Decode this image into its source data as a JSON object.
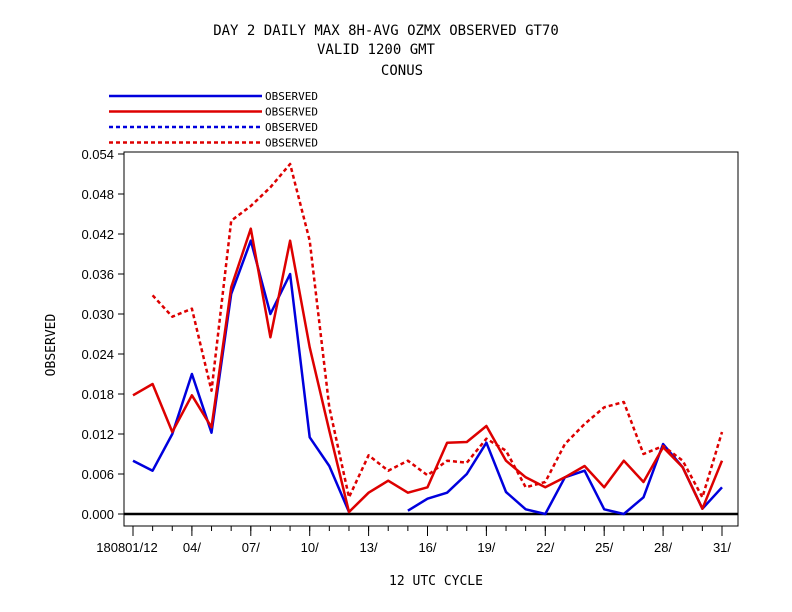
{
  "chart_data": {
    "type": "line",
    "title": [
      "DAY 2 DAILY MAX   8H-AVG OZMX OBSERVED GT70",
      "VALID 1200 GMT",
      "CONUS"
    ],
    "xlabel": "12 UTC CYCLE",
    "ylabel": "OBSERVED",
    "ylim": [
      0,
      0.054
    ],
    "yticks": [
      "0.000",
      "0.006",
      "0.012",
      "0.018",
      "0.024",
      "0.030",
      "0.036",
      "0.042",
      "0.048",
      "0.054"
    ],
    "x_first_tick_label": "180801/12",
    "xticks": [
      {
        "day": 1,
        "label": "180801/12"
      },
      {
        "day": 4,
        "label": "04/"
      },
      {
        "day": 7,
        "label": "07/"
      },
      {
        "day": 10,
        "label": "10/"
      },
      {
        "day": 13,
        "label": "13/"
      },
      {
        "day": 16,
        "label": "16/"
      },
      {
        "day": 19,
        "label": "19/"
      },
      {
        "day": 22,
        "label": "22/"
      },
      {
        "day": 25,
        "label": "25/"
      },
      {
        "day": 28,
        "label": "28/"
      },
      {
        "day": 31,
        "label": "31/"
      }
    ],
    "x": [
      1,
      2,
      3,
      4,
      5,
      6,
      7,
      8,
      9,
      10,
      11,
      12,
      13,
      14,
      15,
      16,
      17,
      18,
      19,
      20,
      21,
      22,
      23,
      24,
      25,
      26,
      27,
      28,
      29,
      30,
      31
    ],
    "legend_placement": "top-left",
    "series": [
      {
        "name": "OBSERVED",
        "color": "#0000dd",
        "style": "solid",
        "values": [
          0.008,
          0.0065,
          0.012,
          0.021,
          0.0122,
          0.033,
          0.041,
          0.03,
          0.036,
          0.0115,
          0.0072,
          0.0003,
          null,
          null,
          0.0005,
          0.0023,
          0.0032,
          0.006,
          0.0107,
          0.0033,
          0.0007,
          0.0,
          0.0055,
          0.0065,
          0.0007,
          0.0,
          0.0025,
          0.0105,
          0.007,
          0.0008,
          0.004
        ]
      },
      {
        "name": "OBSERVED",
        "color": "#dd0000",
        "style": "solid",
        "values": [
          0.0178,
          0.0195,
          0.0123,
          0.0178,
          0.013,
          0.034,
          0.0428,
          0.0265,
          0.041,
          0.025,
          0.0125,
          0.0003,
          0.0032,
          0.005,
          0.0032,
          0.004,
          0.0107,
          0.0108,
          0.0132,
          0.008,
          0.0055,
          0.004,
          0.0055,
          0.0072,
          0.004,
          0.008,
          0.0048,
          0.01,
          0.007,
          0.0008,
          0.008
        ]
      },
      {
        "name": "OBSERVED",
        "color": "#0000dd",
        "style": "dashed",
        "values": [
          null,
          null,
          null,
          null,
          null,
          null,
          null,
          null,
          null,
          null,
          null,
          null,
          null,
          null,
          null,
          null,
          null,
          null,
          null,
          null,
          null,
          null,
          null,
          null,
          null,
          null,
          null,
          null,
          null,
          null,
          null
        ]
      },
      {
        "name": "OBSERVED",
        "color": "#dd0000",
        "style": "dashed",
        "values": [
          null,
          0.0328,
          0.0296,
          0.0308,
          0.0185,
          0.044,
          0.0462,
          0.049,
          0.0525,
          0.041,
          0.016,
          0.0025,
          0.0088,
          0.0065,
          0.008,
          0.0058,
          0.008,
          0.0077,
          0.0113,
          0.0095,
          0.004,
          0.0048,
          0.0105,
          0.0135,
          0.016,
          0.0168,
          0.009,
          0.0102,
          0.008,
          0.0025,
          0.0123
        ]
      }
    ]
  }
}
